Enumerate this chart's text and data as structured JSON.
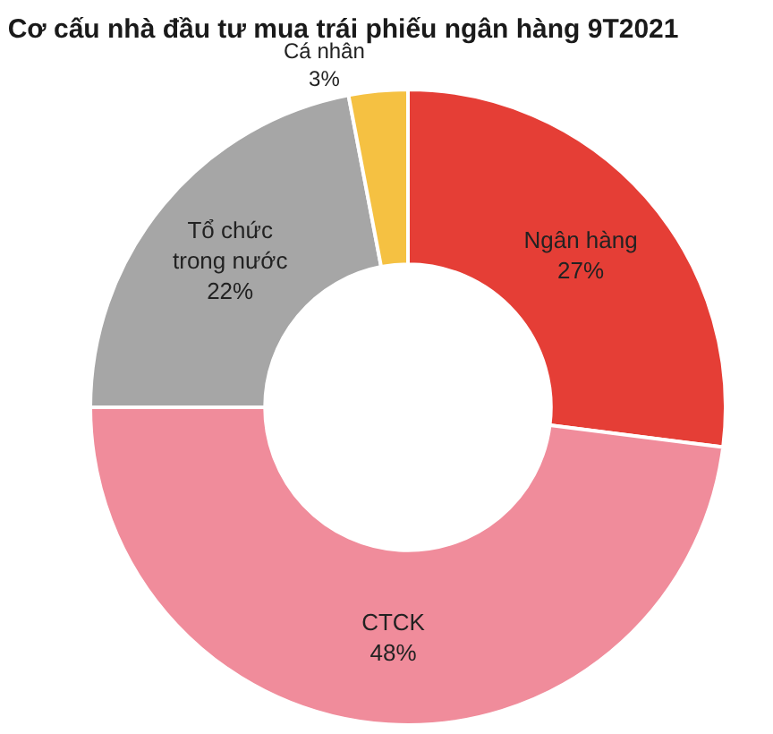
{
  "chart_data": {
    "type": "donut",
    "title": "Cơ cấu nhà đầu tư mua trái phiếu ngân hàng 9T2021",
    "categories": [
      "Ngân hàng",
      "CTCK",
      "Tổ chức\ntrong nước",
      "Cá nhân"
    ],
    "values": [
      27,
      48,
      22,
      3
    ],
    "colors": [
      "#e53e36",
      "#f08c9b",
      "#a6a6a6",
      "#f5c142"
    ],
    "value_labels": [
      "27%",
      "48%",
      "22%",
      "3%"
    ],
    "legend": false
  }
}
